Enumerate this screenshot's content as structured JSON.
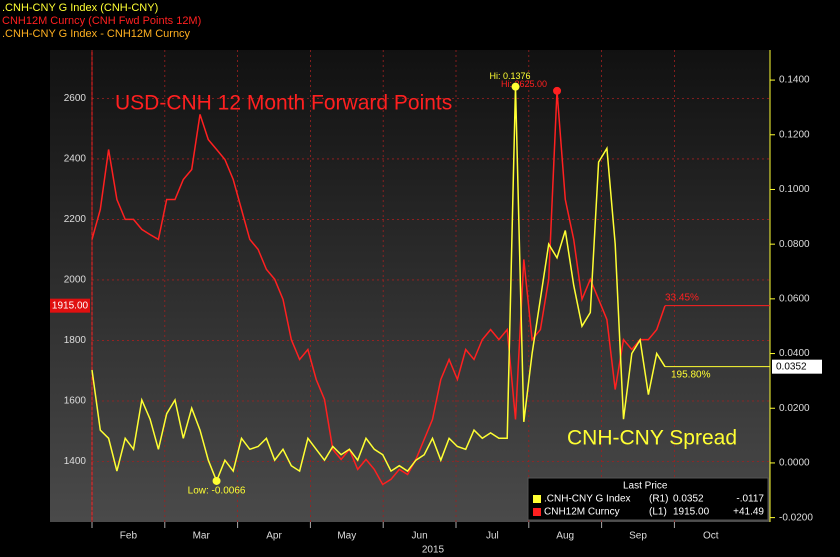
{
  "chart_data": {
    "type": "line",
    "legend": [
      {
        "text": ".CNH-CNY G Index (CNH-CNY)",
        "color": "#ffff33"
      },
      {
        "text": "CNH12M Curncy (CNH Fwd Points 12M)",
        "color": "#ff2020"
      },
      {
        "text": ".CNH-CNY G Index - CNH12M Curncy",
        "color": "#ffb020"
      }
    ],
    "xlabels": [
      "Feb",
      "Mar",
      "Apr",
      "May",
      "Jun",
      "Jul",
      "Aug",
      "Sep",
      "Oct"
    ],
    "year": "2015",
    "ylim": [
      1200,
      2760
    ],
    "yticks": [
      1400,
      1600,
      1800,
      2000,
      2200,
      2400,
      2600
    ],
    "y2lim": [
      -0.0216,
      0.151
    ],
    "y2ticks": [
      {
        "value": -0.02,
        "label": "-0.0200"
      },
      {
        "value": 0,
        "label": "0.0000"
      },
      {
        "value": 0.02,
        "label": "0.0200"
      },
      {
        "value": 0.04,
        "label": "0.0400"
      },
      {
        "value": 0.06,
        "label": "0.0600"
      },
      {
        "value": 0.08,
        "label": "0.0800"
      },
      {
        "value": 0.1,
        "label": "0.1000"
      },
      {
        "value": 0.12,
        "label": "0.1200"
      },
      {
        "value": 0.14,
        "label": "0.1400"
      }
    ],
    "grid": true,
    "series": [
      {
        "name": "CNH12M Curncy (L1)",
        "color": "#ff2020",
        "values": [
          2134,
          2233,
          2431,
          2266,
          2200,
          2200,
          2167,
          2150,
          2134,
          2266,
          2266,
          2332,
          2365,
          2547,
          2464,
          2431,
          2398,
          2332,
          2233,
          2134,
          2101,
          2035,
          2002,
          1936,
          1803,
          1737,
          1770,
          1671,
          1605,
          1440,
          1407,
          1440,
          1374,
          1407,
          1374,
          1324,
          1341,
          1374,
          1357,
          1407,
          1473,
          1539,
          1671,
          1737,
          1671,
          1770,
          1737,
          1803,
          1836,
          1803,
          1836,
          1539,
          2068,
          1803,
          1836,
          2002,
          2625,
          2266,
          2134,
          1936,
          2002,
          1936,
          1869,
          1638,
          1803,
          1770,
          1803,
          1803,
          1836,
          1915
        ]
      },
      {
        "name": ".CNH-CNY G Index (R1)",
        "color": "#ffff33",
        "axis": "y2",
        "values": [
          0.034,
          0.012,
          0.009,
          -0.003,
          0.009,
          0.005,
          0.023,
          0.016,
          0.005,
          0.018,
          0.023,
          0.009,
          0.02,
          0.012,
          0.001,
          -0.0066,
          0.001,
          -0.003,
          0.009,
          0.005,
          0.006,
          0.009,
          0.001,
          0.005,
          -0.001,
          -0.003,
          0.009,
          0.005,
          0.001,
          0.006,
          0.003,
          0.005,
          0.001,
          0.009,
          0.005,
          0.003,
          -0.003,
          -0.001,
          -0.003,
          0.001,
          0.003,
          0.009,
          0.001,
          0.009,
          0.006,
          0.005,
          0.012,
          0.009,
          0.011,
          0.009,
          0.009,
          0.1376,
          0.015,
          0.04,
          0.06,
          0.08,
          0.075,
          0.085,
          0.065,
          0.05,
          0.055,
          0.11,
          0.115,
          0.08,
          0.016,
          0.04,
          0.045,
          0.025,
          0.04,
          0.0352
        ]
      }
    ],
    "annotations": {
      "red_title": "USD-CNH 12 Month Forward Points",
      "yellow_title": "CNH-CNY Spread",
      "red_hi": "Hi: 2625.00",
      "yellow_hi": "Hi: 0.1376",
      "yellow_low": "Low: -0.0066",
      "red_pct": "33.45%",
      "yellow_pct": "195.80%",
      "red_last": "1915.00",
      "yellow_last": "0.0352"
    },
    "last_price_box": {
      "title": "Last Price",
      "rows": [
        {
          "name": ".CNH-CNY G Index",
          "axis": "(R1)",
          "last": "0.0352",
          "change": "-.0117"
        },
        {
          "name": "CNH12M Curncy",
          "axis": "(L1)",
          "last": "1915.00",
          "change": "+41.49"
        }
      ]
    }
  }
}
